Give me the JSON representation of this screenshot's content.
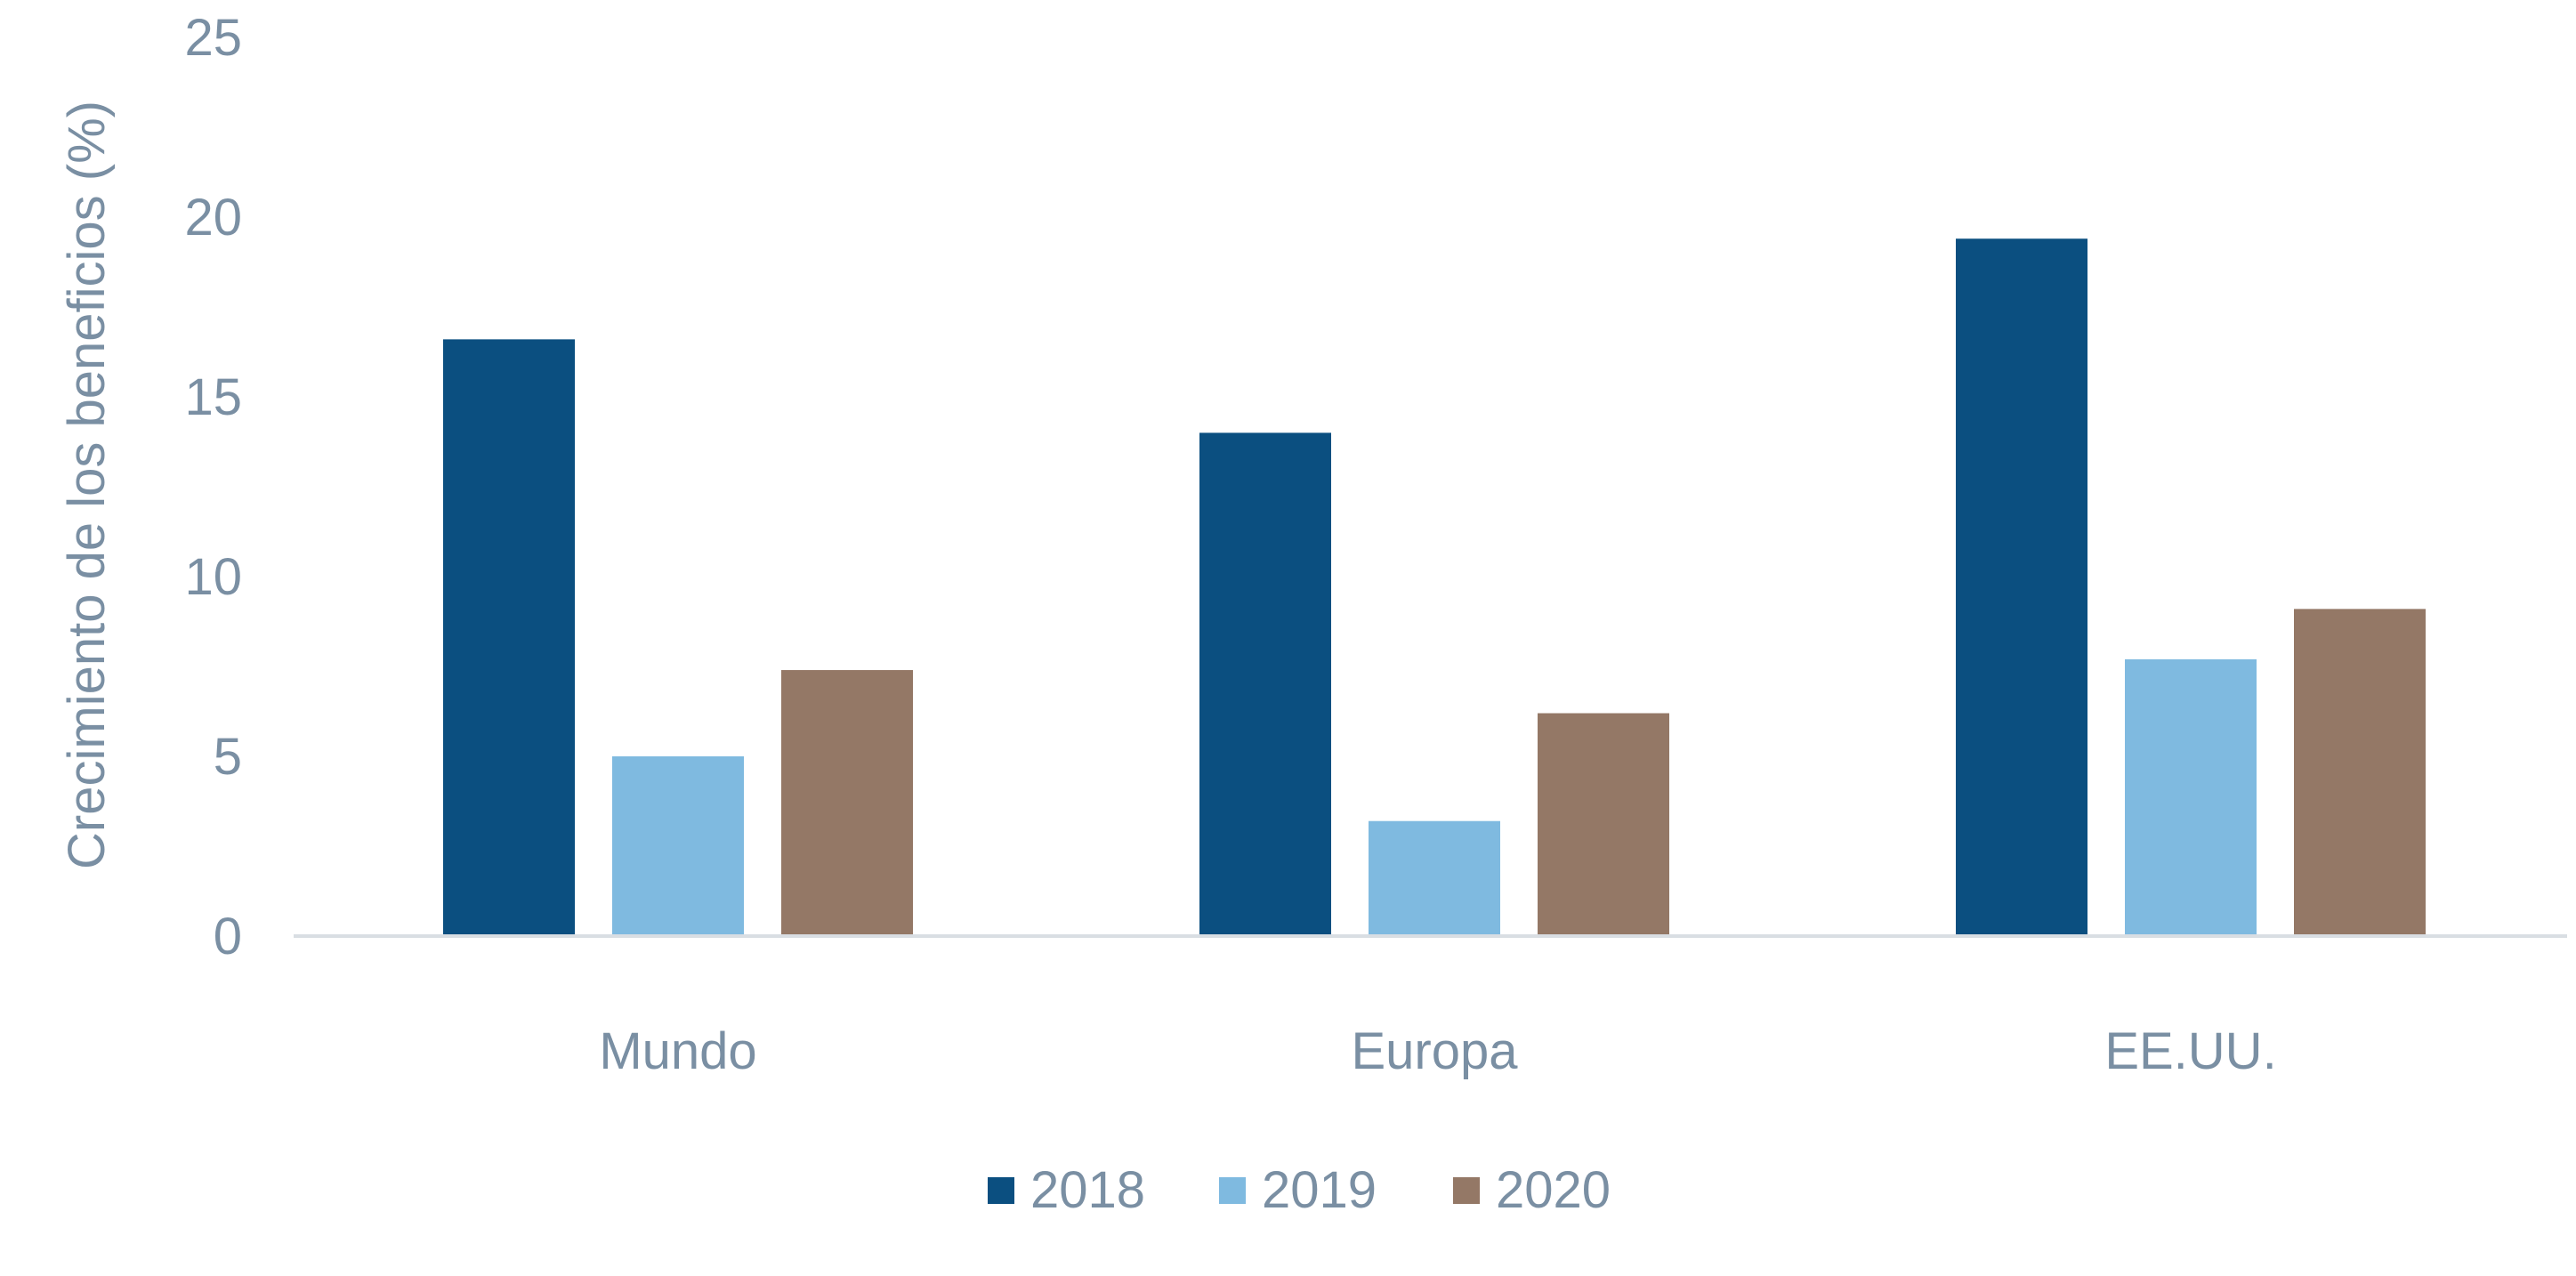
{
  "chart_data": {
    "type": "bar",
    "title": "",
    "xlabel": "",
    "ylabel": "Crecimiento de los beneficios (%)",
    "categories": [
      "Mundo",
      "Europa",
      "EE.UU."
    ],
    "series": [
      {
        "name": "2018",
        "color": "#0b4f80",
        "values": [
          16.6,
          14.0,
          19.4
        ]
      },
      {
        "name": "2019",
        "color": "#7fbae0",
        "values": [
          5.0,
          3.2,
          7.7
        ]
      },
      {
        "name": "2020",
        "color": "#947866",
        "values": [
          7.4,
          6.2,
          9.1
        ]
      }
    ],
    "ylim": [
      0,
      25
    ],
    "yticks": [
      "0",
      "5",
      "10",
      "15",
      "20",
      "25"
    ],
    "grid": false,
    "legend_position": "bottom-center",
    "text_color": "#7a8fa3",
    "axis_color": "#d9dee3"
  }
}
